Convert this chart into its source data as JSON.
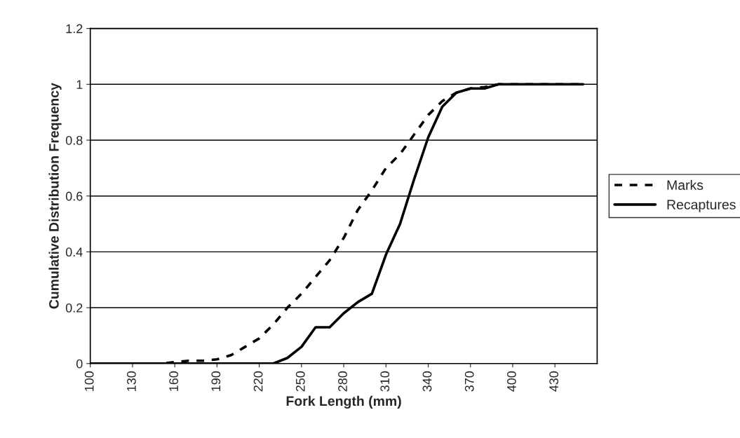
{
  "chart_data": {
    "type": "line",
    "xlabel": "Fork Length (mm)",
    "ylabel": "Cumulative Distribution Frequency",
    "x": [
      100,
      110,
      120,
      130,
      140,
      150,
      160,
      170,
      180,
      190,
      200,
      210,
      220,
      230,
      240,
      250,
      260,
      270,
      280,
      290,
      300,
      310,
      320,
      330,
      340,
      350,
      360,
      370,
      380,
      390,
      400,
      410,
      420,
      430,
      440,
      450
    ],
    "series": [
      {
        "name": "Marks",
        "color": "#000000",
        "line_style": "dashed",
        "values": [
          0,
          0,
          0,
          0,
          0,
          0,
          0.005,
          0.01,
          0.01,
          0.015,
          0.03,
          0.06,
          0.09,
          0.14,
          0.2,
          0.25,
          0.31,
          0.37,
          0.45,
          0.55,
          0.62,
          0.7,
          0.75,
          0.82,
          0.89,
          0.94,
          0.97,
          0.985,
          0.99,
          1,
          1,
          1,
          1,
          1,
          1,
          1
        ]
      },
      {
        "name": "Recaptures",
        "color": "#000000",
        "line_style": "solid",
        "values": [
          0,
          0,
          0,
          0,
          0,
          0,
          0,
          0,
          0,
          0,
          0,
          0,
          0,
          0,
          0.02,
          0.06,
          0.13,
          0.13,
          0.18,
          0.22,
          0.25,
          0.39,
          0.5,
          0.66,
          0.81,
          0.92,
          0.97,
          0.985,
          0.985,
          1,
          1,
          1,
          1,
          1,
          1,
          1
        ]
      }
    ],
    "xlim": [
      100,
      460
    ],
    "xticks": [
      100,
      130,
      160,
      190,
      220,
      250,
      280,
      310,
      340,
      370,
      400,
      430
    ],
    "ylim": [
      0,
      1.2
    ],
    "yticks": [
      0,
      0.2,
      0.4,
      0.6,
      0.8,
      1,
      1.2
    ],
    "grid": "y",
    "legend": "right",
    "marker": "none"
  }
}
